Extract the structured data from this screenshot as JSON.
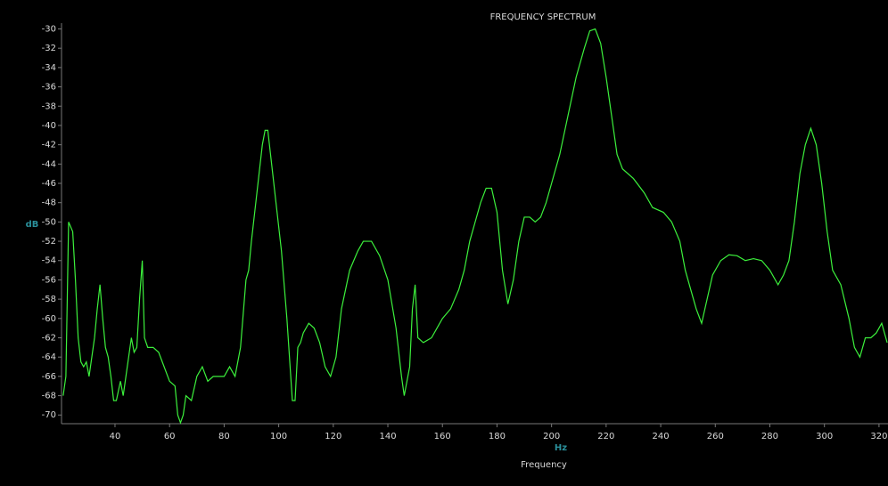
{
  "chart_data": {
    "type": "line",
    "title": "FREQUENCY SPECTRUM",
    "x_label": "Frequency",
    "x_unit": "Hz",
    "y_unit": "dB",
    "xlim": [
      20.4,
      323.3
    ],
    "ylim": [
      -70.9,
      -29.4
    ],
    "xticks": [
      40,
      60,
      80,
      100,
      120,
      140,
      160,
      180,
      200,
      220,
      240,
      260,
      280,
      300,
      320
    ],
    "yticks": [
      -30,
      -32,
      -34,
      -36,
      -38,
      -40,
      -42,
      -44,
      -46,
      -48,
      -50,
      -52,
      -54,
      -56,
      -58,
      -60,
      -62,
      -64,
      -66,
      -68,
      -70
    ],
    "grid": false,
    "color": "#3cf03c",
    "x": [
      21,
      22,
      23,
      24.5,
      25.5,
      26.5,
      27.5,
      28.5,
      29.5,
      30.5,
      31.5,
      32.5,
      33.5,
      34.5,
      35.5,
      36.5,
      37.5,
      38.5,
      39.5,
      40.5,
      42,
      43,
      44,
      45,
      46,
      47,
      48,
      49,
      50,
      50.8,
      52,
      54,
      56,
      58,
      60,
      62,
      63,
      64,
      65,
      66,
      68,
      70,
      72,
      74,
      76,
      78,
      80,
      82,
      84,
      86,
      88,
      89,
      90,
      92,
      94,
      95,
      96,
      97,
      99,
      101,
      103,
      105,
      106,
      107,
      108,
      109,
      111,
      113,
      115,
      117,
      119,
      121,
      123,
      126,
      129,
      131,
      134,
      137,
      140,
      143,
      145,
      146,
      148,
      149,
      150,
      151,
      153,
      156,
      158,
      160,
      163,
      166,
      168,
      170,
      172,
      174,
      176,
      178,
      180,
      182,
      184,
      186,
      188,
      190,
      192,
      194,
      196,
      198,
      200,
      203,
      206,
      209,
      212,
      214,
      216,
      218,
      220,
      222,
      224,
      226,
      230,
      234,
      237,
      241,
      244,
      247,
      249,
      251,
      253,
      255,
      257,
      259,
      262,
      265,
      268,
      271,
      274,
      277,
      280,
      283,
      285,
      287,
      289,
      291,
      293,
      295,
      297,
      299,
      301,
      303,
      306,
      309,
      311,
      313,
      315,
      317,
      319,
      321,
      323
    ],
    "values": [
      -68,
      -66,
      -50,
      -51,
      -56,
      -62,
      -64.5,
      -65,
      -64.5,
      -66,
      -64,
      -62,
      -59,
      -56.5,
      -60,
      -63,
      -64,
      -66,
      -68.5,
      -68.5,
      -66.5,
      -68,
      -66,
      -64,
      -62,
      -63.5,
      -63,
      -58,
      -54,
      -62,
      -63,
      -63,
      -63.5,
      -65,
      -66.5,
      -67,
      -70,
      -70.8,
      -70,
      -68,
      -68.5,
      -66,
      -65,
      -66.5,
      -66,
      -66,
      -66,
      -65,
      -66,
      -63,
      -56,
      -55,
      -52,
      -47,
      -42,
      -40.5,
      -40.5,
      -43,
      -48,
      -53,
      -60,
      -68.5,
      -68.5,
      -63,
      -62.5,
      -61.5,
      -60.5,
      -61,
      -62.5,
      -65,
      -66,
      -64,
      -59,
      -55,
      -53,
      -52,
      -52,
      -53.5,
      -56,
      -61,
      -66,
      -68,
      -65,
      -59,
      -56.5,
      -62,
      -62.5,
      -62,
      -61,
      -60,
      -59,
      -57,
      -55,
      -52,
      -50,
      -48,
      -46.5,
      -46.5,
      -49,
      -55,
      -58.5,
      -56,
      -52,
      -49.5,
      -49.5,
      -50,
      -49.5,
      -48,
      -46,
      -43,
      -39,
      -35,
      -32,
      -30.2,
      -30,
      -31.5,
      -35,
      -39,
      -43,
      -44.5,
      -45.5,
      -47,
      -48.5,
      -49,
      -50,
      -52,
      -55,
      -57,
      -59,
      -60.5,
      -58,
      -55.5,
      -54,
      -53.4,
      -53.5,
      -54,
      -53.8,
      -54,
      -55,
      -56.5,
      -55.5,
      -54,
      -50,
      -45,
      -42,
      -40.3,
      -42,
      -46,
      -51,
      -55,
      -56.5,
      -60,
      -63,
      -64,
      -62,
      -62,
      -61.5,
      -60.5,
      -62.5
    ]
  }
}
